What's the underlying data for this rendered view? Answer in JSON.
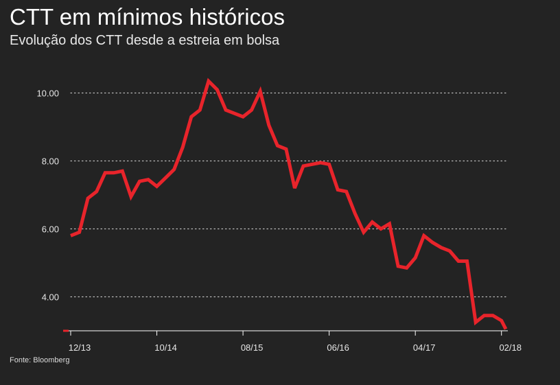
{
  "page": {
    "title": "CTT em mínimos históricos",
    "subtitle": "Evolução dos CTT desde a estreia em bolsa",
    "source": "Fonte: Bloomberg"
  },
  "colors": {
    "background": "#232323",
    "line": "#e8242b",
    "text": "#ffffff",
    "grid": "#bdbdbd"
  },
  "chart_data": {
    "type": "line",
    "title": "CTT em mínimos históricos",
    "subtitle": "Evolução dos CTT desde a estreia em bolsa",
    "xlabel": "",
    "ylabel": "",
    "xlim": [
      0,
      50.5
    ],
    "ylim": [
      3.0,
      10.3
    ],
    "grid": "horizontal dotted",
    "y_ticks": [
      4.0,
      6.0,
      8.0,
      10.0
    ],
    "y_tick_labels": [
      "4.00",
      "6.00",
      "8.00",
      "10.00"
    ],
    "x_ticks": [
      0,
      10,
      20,
      30,
      40,
      50
    ],
    "x_tick_labels": [
      "12/13",
      "10/14",
      "08/15",
      "06/16",
      "04/17",
      "02/18"
    ],
    "series": [
      {
        "name": "CTT",
        "x": [
          0,
          1,
          2,
          3,
          4,
          5,
          6,
          7,
          8,
          9,
          10,
          11,
          12,
          13,
          14,
          15,
          16,
          17,
          18,
          19,
          20,
          21,
          22,
          23,
          24,
          25,
          26,
          27,
          28,
          29,
          30,
          31,
          32,
          33,
          34,
          35,
          36,
          37,
          38,
          39,
          40,
          41,
          42,
          43,
          44,
          45,
          46,
          47,
          48,
          49,
          50,
          50.5
        ],
        "values": [
          5.8,
          5.9,
          6.9,
          7.1,
          7.65,
          7.65,
          7.7,
          6.95,
          7.4,
          7.45,
          7.25,
          7.5,
          7.75,
          8.4,
          9.3,
          9.5,
          10.35,
          10.1,
          9.5,
          9.4,
          9.3,
          9.5,
          10.05,
          9.05,
          8.45,
          8.35,
          7.2,
          7.85,
          7.9,
          7.95,
          7.9,
          7.15,
          7.1,
          6.45,
          5.9,
          6.2,
          6.0,
          6.15,
          4.9,
          4.85,
          5.15,
          5.8,
          5.6,
          5.45,
          5.35,
          5.05,
          5.05,
          3.25,
          3.45,
          3.45,
          3.3,
          3.05
        ]
      }
    ]
  }
}
